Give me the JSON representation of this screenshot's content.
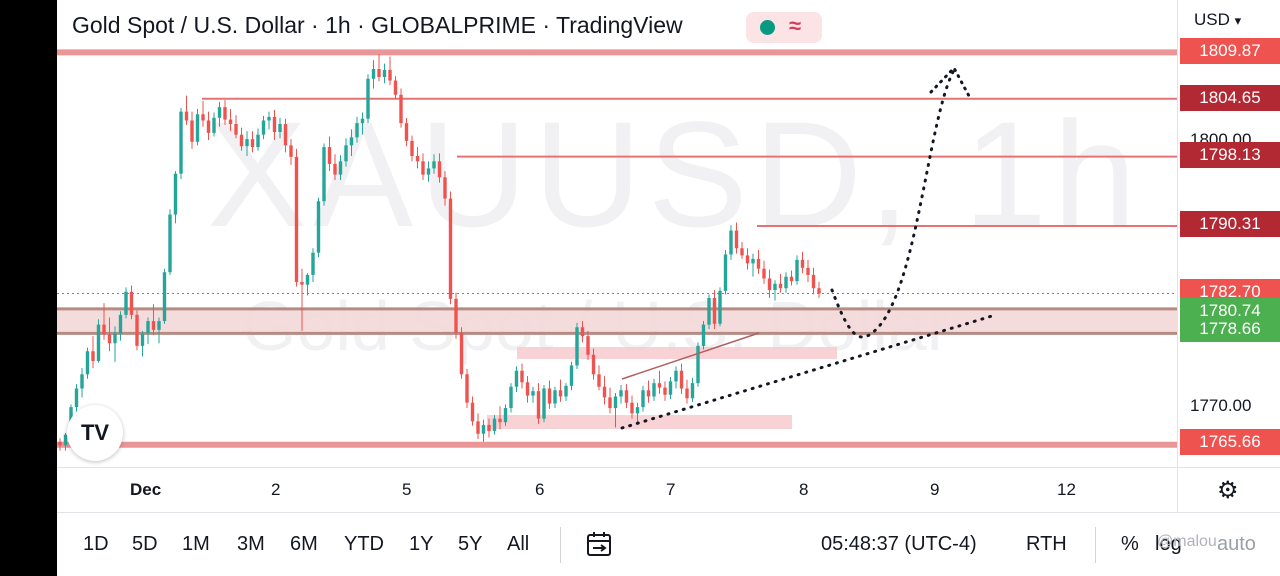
{
  "header": {
    "title": "Gold Spot / U.S. Dollar · 1h · GLOBALPRIME · TradingView",
    "currency": "USD",
    "currency_caret": "▾",
    "status_wave": "≈"
  },
  "watermark": {
    "symbol": "XAUUSD, 1h",
    "name": "Gold Spot / U.S. Dollar"
  },
  "price_axis": {
    "labels": [
      {
        "text": "1809.87",
        "color": "#ef5350"
      },
      {
        "text": "1804.65",
        "color": "#b22833"
      },
      {
        "text": "1798.13",
        "color": "#b22833"
      },
      {
        "text": "1790.31",
        "color": "#b22833"
      },
      {
        "text": "1782.70",
        "color": "#ef5350"
      },
      {
        "text": "1780.74",
        "color": "#4caf50"
      },
      {
        "text": "1778.66",
        "color": "#4caf50"
      },
      {
        "text": "1765.66",
        "color": "#ef5350"
      }
    ],
    "ticks": [
      "1800.00",
      "1770.00"
    ]
  },
  "time_axis": [
    "Dec",
    "2",
    "5",
    "6",
    "7",
    "8",
    "9",
    "12"
  ],
  "bottom_bar": {
    "ranges": [
      "1D",
      "5D",
      "1M",
      "3M",
      "6M",
      "YTD",
      "1Y",
      "5Y",
      "All"
    ],
    "clock": "05:48:37 (UTC-4)",
    "session": "RTH",
    "percent": "%",
    "log": "log",
    "auto": "auto",
    "overlay_text": "@malou"
  },
  "logo": {
    "text": "TV"
  },
  "icons": {
    "settings": "gear-icon",
    "date_range": "calendar-range-icon",
    "logo": "tradingview-logo-icon"
  },
  "colors": {
    "up": "#26a69a",
    "down": "#ef5350",
    "level_line": "#e57373",
    "zone": "#f8c7cc",
    "accent_green": "#4caf50"
  },
  "chart_data": {
    "type": "candlestick",
    "symbol": "XAUUSD",
    "interval": "1h",
    "ylim": [
      1763,
      1812
    ],
    "x_ticks": [
      "Dec",
      "2",
      "5",
      "6",
      "7",
      "8",
      "9",
      "12"
    ],
    "horizontal_levels": [
      1809.87,
      1804.65,
      1798.13,
      1790.31,
      1765.66
    ],
    "last_price": 1782.7,
    "support_zone": [
      1778.66,
      1780.74
    ],
    "candles": [
      [
        1766.0,
        1766.4,
        1765.0,
        1765.6
      ],
      [
        1765.6,
        1767.0,
        1765.0,
        1766.8
      ],
      [
        1766.8,
        1770.2,
        1766.5,
        1769.9
      ],
      [
        1769.9,
        1772.5,
        1769.4,
        1772.0
      ],
      [
        1772.0,
        1774.3,
        1771.0,
        1773.6
      ],
      [
        1773.6,
        1776.6,
        1773.1,
        1776.2
      ],
      [
        1776.2,
        1777.9,
        1774.3,
        1775.1
      ],
      [
        1775.1,
        1779.8,
        1774.9,
        1779.2
      ],
      [
        1779.2,
        1781.6,
        1777.5,
        1778.1
      ],
      [
        1778.1,
        1780.0,
        1776.2,
        1777.1
      ],
      [
        1777.1,
        1779.0,
        1775.0,
        1778.2
      ],
      [
        1778.2,
        1780.7,
        1777.4,
        1780.3
      ],
      [
        1780.3,
        1783.4,
        1779.9,
        1782.9
      ],
      [
        1782.9,
        1783.6,
        1779.8,
        1780.3
      ],
      [
        1780.3,
        1780.8,
        1776.3,
        1776.8
      ],
      [
        1776.8,
        1778.5,
        1775.6,
        1778.2
      ],
      [
        1778.2,
        1780.0,
        1777.0,
        1779.6
      ],
      [
        1779.6,
        1781.5,
        1778.0,
        1778.6
      ],
      [
        1778.6,
        1780.0,
        1777.1,
        1779.6
      ],
      [
        1779.6,
        1785.5,
        1779.3,
        1785.1
      ],
      [
        1785.1,
        1792.2,
        1784.8,
        1791.6
      ],
      [
        1791.6,
        1796.5,
        1790.6,
        1796.2
      ],
      [
        1796.2,
        1803.6,
        1795.6,
        1803.2
      ],
      [
        1803.2,
        1805.0,
        1801.7,
        1802.2
      ],
      [
        1802.2,
        1803.2,
        1799.0,
        1799.8
      ],
      [
        1799.8,
        1803.5,
        1799.4,
        1802.9
      ],
      [
        1802.9,
        1804.4,
        1801.5,
        1802.2
      ],
      [
        1802.2,
        1803.2,
        1800.0,
        1800.8
      ],
      [
        1800.8,
        1803.1,
        1800.4,
        1802.5
      ],
      [
        1802.5,
        1804.3,
        1801.5,
        1803.7
      ],
      [
        1803.7,
        1804.5,
        1801.7,
        1802.3
      ],
      [
        1802.3,
        1803.5,
        1801.0,
        1801.8
      ],
      [
        1801.8,
        1802.8,
        1800.2,
        1800.6
      ],
      [
        1800.6,
        1801.4,
        1798.8,
        1799.3
      ],
      [
        1799.3,
        1801.0,
        1798.2,
        1800.1
      ],
      [
        1800.1,
        1801.0,
        1798.6,
        1799.2
      ],
      [
        1799.2,
        1801.3,
        1798.8,
        1800.6
      ],
      [
        1800.6,
        1802.7,
        1800.1,
        1802.2
      ],
      [
        1802.2,
        1803.2,
        1801.2,
        1802.6
      ],
      [
        1802.6,
        1803.4,
        1800.0,
        1800.9
      ],
      [
        1800.9,
        1802.5,
        1800.2,
        1801.8
      ],
      [
        1801.8,
        1802.4,
        1798.6,
        1799.4
      ],
      [
        1799.4,
        1800.1,
        1797.2,
        1798.1
      ],
      [
        1798.1,
        1799.0,
        1783.5,
        1784.0
      ],
      [
        1784.0,
        1785.5,
        1778.5,
        1783.7
      ],
      [
        1783.7,
        1785.0,
        1782.5,
        1784.8
      ],
      [
        1784.8,
        1787.8,
        1784.0,
        1787.3
      ],
      [
        1787.3,
        1793.5,
        1786.8,
        1793.1
      ],
      [
        1793.1,
        1799.6,
        1792.6,
        1799.2
      ],
      [
        1799.2,
        1800.4,
        1796.5,
        1797.3
      ],
      [
        1797.3,
        1798.4,
        1795.5,
        1796.1
      ],
      [
        1796.1,
        1798.3,
        1795.5,
        1797.6
      ],
      [
        1797.6,
        1800.2,
        1797.0,
        1799.4
      ],
      [
        1799.4,
        1801.2,
        1798.2,
        1800.3
      ],
      [
        1800.3,
        1802.6,
        1799.7,
        1801.9
      ],
      [
        1801.9,
        1803.1,
        1800.6,
        1802.4
      ],
      [
        1802.4,
        1807.4,
        1801.9,
        1806.9
      ],
      [
        1806.9,
        1809.0,
        1805.8,
        1808.0
      ],
      [
        1808.0,
        1809.7,
        1806.6,
        1807.1
      ],
      [
        1807.1,
        1808.6,
        1806.4,
        1807.9
      ],
      [
        1807.9,
        1809.4,
        1806.2,
        1806.7
      ],
      [
        1806.7,
        1807.2,
        1804.6,
        1805.1
      ],
      [
        1805.1,
        1805.8,
        1801.4,
        1801.9
      ],
      [
        1801.9,
        1802.5,
        1799.3,
        1799.9
      ],
      [
        1799.9,
        1800.5,
        1797.6,
        1798.2
      ],
      [
        1798.2,
        1799.2,
        1796.8,
        1797.6
      ],
      [
        1797.6,
        1798.5,
        1795.5,
        1796.1
      ],
      [
        1796.1,
        1797.6,
        1795.3,
        1796.8
      ],
      [
        1796.8,
        1798.4,
        1796.2,
        1797.6
      ],
      [
        1797.6,
        1798.5,
        1795.2,
        1795.8
      ],
      [
        1795.8,
        1796.5,
        1792.6,
        1793.4
      ],
      [
        1793.4,
        1794.2,
        1781.5,
        1782.1
      ],
      [
        1782.1,
        1782.8,
        1777.6,
        1778.3
      ],
      [
        1778.3,
        1778.9,
        1773.1,
        1773.6
      ],
      [
        1773.6,
        1774.2,
        1769.8,
        1770.4
      ],
      [
        1770.4,
        1771.1,
        1767.8,
        1768.3
      ],
      [
        1768.3,
        1769.2,
        1766.3,
        1766.9
      ],
      [
        1766.9,
        1768.5,
        1766.0,
        1767.9
      ],
      [
        1767.9,
        1768.6,
        1766.5,
        1767.2
      ],
      [
        1767.2,
        1769.0,
        1766.8,
        1768.6
      ],
      [
        1768.6,
        1770.0,
        1767.4,
        1768.2
      ],
      [
        1768.2,
        1770.2,
        1767.8,
        1769.8
      ],
      [
        1769.8,
        1772.6,
        1769.3,
        1772.2
      ],
      [
        1772.2,
        1774.5,
        1771.6,
        1774.0
      ],
      [
        1774.0,
        1774.8,
        1772.0,
        1772.7
      ],
      [
        1772.7,
        1773.4,
        1770.4,
        1771.2
      ],
      [
        1771.2,
        1772.2,
        1770.4,
        1771.7
      ],
      [
        1771.7,
        1772.6,
        1768.0,
        1768.6
      ],
      [
        1768.6,
        1772.4,
        1768.2,
        1772.0
      ],
      [
        1772.0,
        1772.9,
        1769.7,
        1770.3
      ],
      [
        1770.3,
        1772.2,
        1769.8,
        1771.8
      ],
      [
        1771.8,
        1773.0,
        1770.5,
        1771.1
      ],
      [
        1771.1,
        1772.6,
        1770.6,
        1772.3
      ],
      [
        1772.3,
        1775.0,
        1771.8,
        1774.6
      ],
      [
        1774.6,
        1779.4,
        1774.2,
        1778.9
      ],
      [
        1778.9,
        1779.6,
        1777.2,
        1777.9
      ],
      [
        1777.9,
        1778.5,
        1775.2,
        1775.8
      ],
      [
        1775.8,
        1776.5,
        1773.0,
        1773.6
      ],
      [
        1773.6,
        1774.6,
        1771.8,
        1772.2
      ],
      [
        1772.2,
        1773.4,
        1770.2,
        1771.0
      ],
      [
        1771.0,
        1772.1,
        1769.2,
        1769.8
      ],
      [
        1769.8,
        1771.5,
        1767.6,
        1771.1
      ],
      [
        1771.1,
        1772.4,
        1770.3,
        1771.8
      ],
      [
        1771.8,
        1772.5,
        1769.8,
        1770.4
      ],
      [
        1770.4,
        1771.2,
        1768.6,
        1769.2
      ],
      [
        1769.2,
        1770.4,
        1768.2,
        1769.9
      ],
      [
        1769.9,
        1772.3,
        1769.4,
        1771.8
      ],
      [
        1771.8,
        1772.9,
        1770.4,
        1771.1
      ],
      [
        1771.1,
        1773.1,
        1770.6,
        1772.6
      ],
      [
        1772.6,
        1774.0,
        1771.4,
        1772.1
      ],
      [
        1772.1,
        1772.8,
        1770.6,
        1771.3
      ],
      [
        1771.3,
        1773.3,
        1770.8,
        1772.8
      ],
      [
        1772.8,
        1774.5,
        1772.0,
        1774.0
      ],
      [
        1774.0,
        1774.8,
        1771.4,
        1772.0
      ],
      [
        1772.0,
        1773.0,
        1770.3,
        1770.9
      ],
      [
        1770.9,
        1773.2,
        1770.5,
        1772.6
      ],
      [
        1772.6,
        1777.2,
        1772.2,
        1776.8
      ],
      [
        1776.8,
        1779.6,
        1776.4,
        1779.2
      ],
      [
        1779.2,
        1782.6,
        1778.7,
        1782.2
      ],
      [
        1782.2,
        1783.1,
        1778.7,
        1779.3
      ],
      [
        1779.3,
        1783.4,
        1779.0,
        1783.0
      ],
      [
        1783.0,
        1787.6,
        1782.6,
        1787.1
      ],
      [
        1787.1,
        1790.4,
        1786.5,
        1789.8
      ],
      [
        1789.8,
        1790.7,
        1787.2,
        1787.8
      ],
      [
        1787.8,
        1788.5,
        1786.6,
        1787.0
      ],
      [
        1787.0,
        1787.8,
        1785.4,
        1786.1
      ],
      [
        1786.1,
        1787.2,
        1784.6,
        1786.6
      ],
      [
        1786.6,
        1787.6,
        1784.9,
        1785.5
      ],
      [
        1785.5,
        1786.4,
        1783.8,
        1784.4
      ],
      [
        1784.4,
        1785.4,
        1782.2,
        1783.1
      ],
      [
        1783.1,
        1784.2,
        1781.9,
        1783.8
      ],
      [
        1783.8,
        1784.9,
        1782.8,
        1783.3
      ],
      [
        1783.3,
        1785.1,
        1782.8,
        1784.6
      ],
      [
        1784.6,
        1785.3,
        1783.6,
        1784.1
      ],
      [
        1784.1,
        1787.0,
        1783.7,
        1786.5
      ],
      [
        1786.5,
        1787.4,
        1785.0,
        1785.6
      ],
      [
        1785.6,
        1786.5,
        1784.0,
        1784.8
      ],
      [
        1784.8,
        1785.6,
        1782.6,
        1783.3
      ],
      [
        1783.3,
        1784.0,
        1782.2,
        1782.7
      ]
    ]
  }
}
